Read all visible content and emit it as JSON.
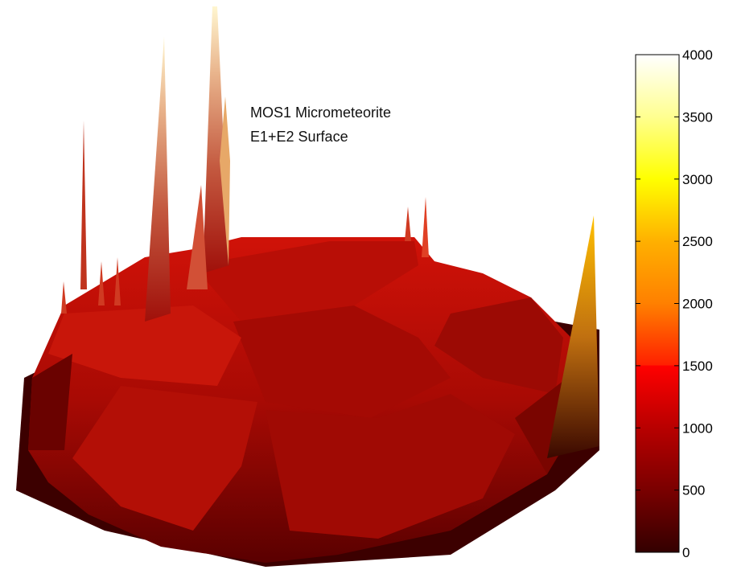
{
  "chart_data": {
    "type": "surface",
    "annotation": [
      "MOS1 Micrometeorite",
      "E1+E2 Surface"
    ],
    "colormap": "hot",
    "colorbar": {
      "range": [
        0,
        4000
      ],
      "ticks": [
        0,
        500,
        1000,
        1500,
        2000,
        2500,
        3000,
        3500,
        4000
      ],
      "colors": [
        {
          "value": 0,
          "color": "#330000"
        },
        {
          "value": 500,
          "color": "#7a0000"
        },
        {
          "value": 1000,
          "color": "#b80000"
        },
        {
          "value": 1500,
          "color": "#ff1a00"
        },
        {
          "value": 2000,
          "color": "#ff8000"
        },
        {
          "value": 2500,
          "color": "#ffc000"
        },
        {
          "value": 3000,
          "color": "#ffff00"
        },
        {
          "value": 3500,
          "color": "#ffff80"
        },
        {
          "value": 4000,
          "color": "#ffffff"
        }
      ]
    },
    "axes_visible": false,
    "grid": false
  }
}
